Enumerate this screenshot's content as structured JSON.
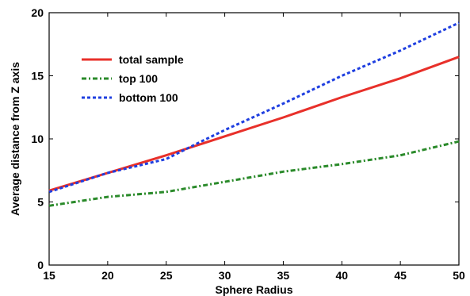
{
  "chart_data": {
    "type": "line",
    "title": "",
    "xlabel": "Sphere Radius",
    "ylabel": "Average distance from Z axis",
    "xlim": [
      15,
      50
    ],
    "ylim": [
      0,
      20
    ],
    "xticks": [
      15,
      20,
      25,
      30,
      35,
      40,
      45,
      50
    ],
    "yticks": [
      0,
      5,
      10,
      15,
      20
    ],
    "grid": false,
    "legend_position": "top-left",
    "series": [
      {
        "name": "total sample",
        "color": "#e8302a",
        "style": "solid",
        "x": [
          15,
          20,
          25,
          30,
          35,
          40,
          45,
          50
        ],
        "y": [
          5.9,
          7.3,
          8.7,
          10.2,
          11.7,
          13.3,
          14.8,
          16.5
        ]
      },
      {
        "name": "top 100",
        "color": "#2a8a2a",
        "style": "dashdot",
        "x": [
          15,
          20,
          25,
          30,
          35,
          40,
          45,
          50
        ],
        "y": [
          4.7,
          5.4,
          5.8,
          6.6,
          7.4,
          8.0,
          8.7,
          9.8
        ]
      },
      {
        "name": "bottom 100",
        "color": "#1f3fe0",
        "style": "dashed",
        "x": [
          15,
          20,
          25,
          28,
          30,
          35,
          40,
          45,
          50
        ],
        "y": [
          5.8,
          7.3,
          8.4,
          9.8,
          10.7,
          12.8,
          15.0,
          17.0,
          19.2
        ]
      }
    ]
  }
}
